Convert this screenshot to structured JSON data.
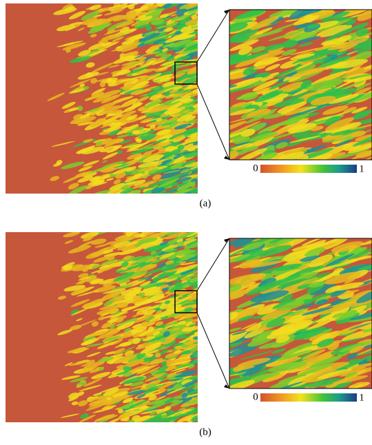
{
  "panels": [
    {
      "label": "(a)",
      "colorbar": {
        "min": "0",
        "max": "1"
      }
    },
    {
      "label": "(b)",
      "colorbar": {
        "min": "0",
        "max": "1"
      }
    }
  ]
}
